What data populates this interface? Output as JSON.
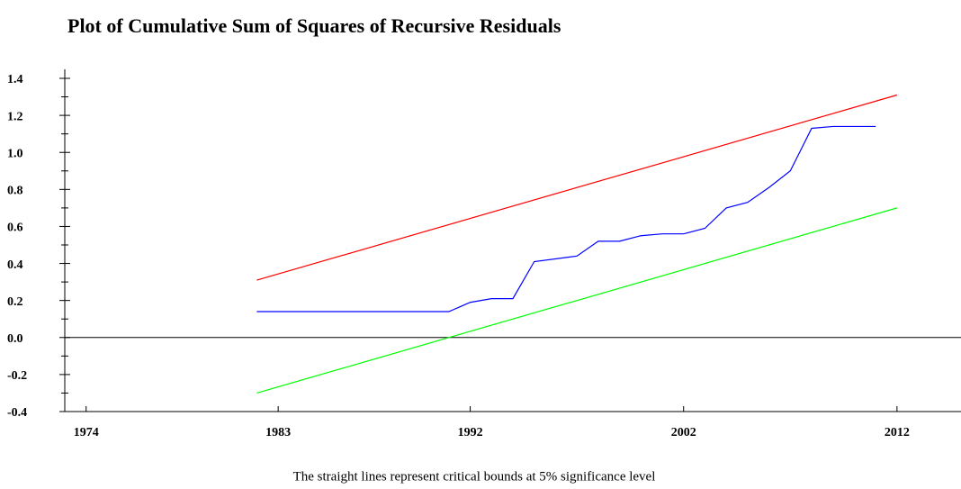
{
  "chart_data": {
    "type": "line",
    "title": "Plot of Cumulative Sum of Squares of Recursive Residuals",
    "note": "The straight lines represent critical bounds at 5% significance level",
    "xlim": [
      1973,
      2015
    ],
    "xticks": [
      1974,
      1983,
      1992,
      2002,
      2012
    ],
    "ylim": [
      -0.4,
      1.4
    ],
    "yticks": [
      1.4,
      1.2,
      {
        "value": 1,
        "label": "1.0"
      },
      0.8,
      0.6,
      0.4,
      0.2,
      {
        "value": 0,
        "label": "0.0"
      },
      -0.2,
      -0.4
    ],
    "series": [
      {
        "color": "#ff0000",
        "x": [
          1982,
          2012
        ],
        "values": [
          0.31,
          1.31
        ]
      },
      {
        "color": "#00ff00",
        "x": [
          1982,
          2012
        ],
        "values": [
          -0.3,
          0.7
        ]
      },
      {
        "color": "#0000ff",
        "x": [
          1982,
          1991,
          1992,
          1993,
          1994,
          1995,
          1997,
          1998,
          1999,
          2000,
          2001,
          2002,
          2003,
          2004,
          2005,
          2006,
          2007,
          2008,
          2009,
          2010,
          2011
        ],
        "values": [
          0.14,
          0.14,
          0.19,
          0.21,
          0.21,
          0.41,
          0.44,
          0.52,
          0.52,
          0.55,
          0.56,
          0.56,
          0.59,
          0.7,
          0.73,
          0.81,
          0.9,
          1.13,
          1.14,
          1.14,
          1.14
        ]
      }
    ]
  }
}
